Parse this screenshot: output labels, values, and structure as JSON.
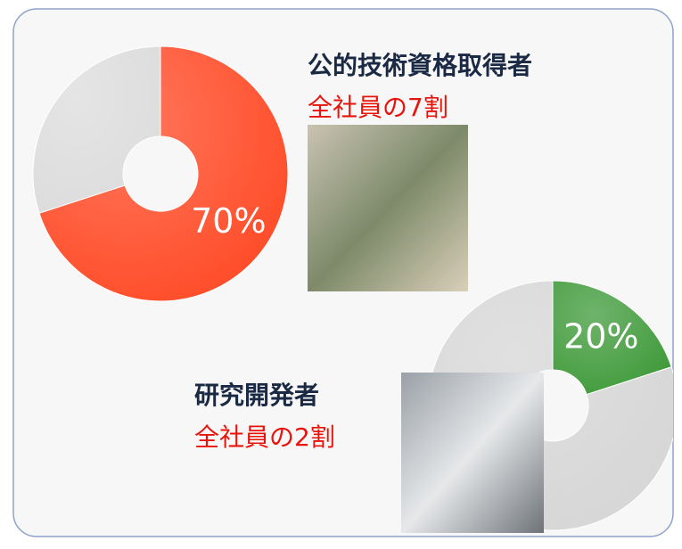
{
  "chart_data": [
    {
      "type": "donut",
      "title": "公的技術資格取得者",
      "subtitle": "全社員の7割",
      "values": [
        70,
        30
      ],
      "value_labels": [
        "70%",
        null
      ],
      "colors": [
        "#ff4a26",
        "#dcdcdc"
      ]
    },
    {
      "type": "donut",
      "title": "研究開発者",
      "subtitle": "全社員の2割",
      "values": [
        20,
        80
      ],
      "value_labels": [
        "20%",
        null
      ],
      "colors": [
        "#3f9a3a",
        "#d6d6d6"
      ]
    }
  ]
}
